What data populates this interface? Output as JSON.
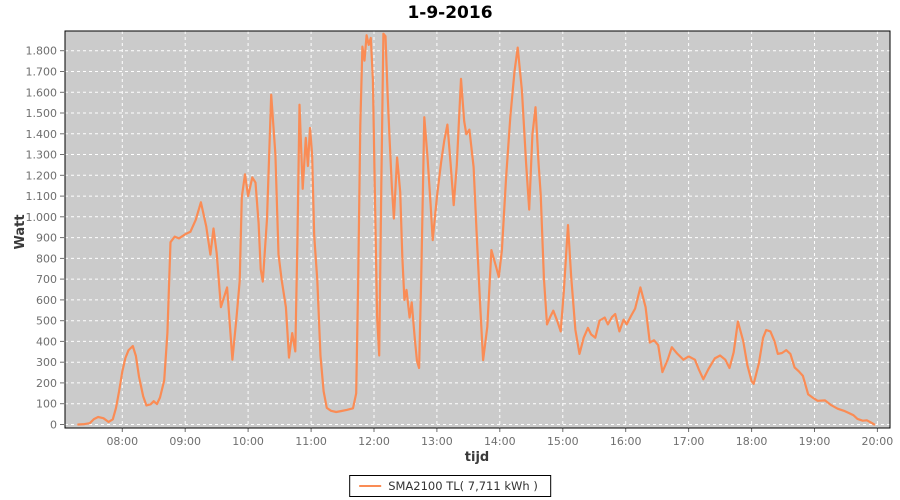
{
  "colors": {
    "series": "#fa8c55",
    "plot_bg": "#cbcbcb",
    "grid": "#ffffff",
    "tick_text": "#6f6f6f",
    "axis_text": "#3a3a3a",
    "border": "#000000",
    "page_bg": "#ffffff",
    "title_text": "#000000"
  },
  "chart_data": {
    "type": "line",
    "title": "1-9-2016",
    "xlabel": "tijd",
    "ylabel": "Watt",
    "legend_position": "bottom-center",
    "grid": "dashed-white-on-gray",
    "x_tick_labels": [
      "08:00",
      "09:00",
      "10:00",
      "11:00",
      "12:00",
      "13:00",
      "14:00",
      "15:00",
      "16:00",
      "17:00",
      "18:00",
      "19:00",
      "20:00"
    ],
    "y_tick_values": [
      0,
      100,
      200,
      300,
      400,
      500,
      600,
      700,
      800,
      900,
      1000,
      1100,
      1200,
      1300,
      1400,
      1500,
      1600,
      1700,
      1800
    ],
    "y_tick_labels": [
      "0",
      "100",
      "200",
      "300",
      "400",
      "500",
      "600",
      "700",
      "800",
      "900",
      "1.000",
      "1.100",
      "1.200",
      "1.300",
      "1.400",
      "1.500",
      "1.600",
      "1.700",
      "1.800"
    ],
    "xlim_hours": [
      7.09,
      20.2
    ],
    "ylim": [
      -17,
      1895
    ],
    "series": [
      {
        "name": "SMA2100 TL( 7,711 kWh )",
        "color": "#fa8c55",
        "points": [
          [
            "07:18",
            0
          ],
          [
            "07:24",
            2
          ],
          [
            "07:29",
            6
          ],
          [
            "07:33",
            26
          ],
          [
            "07:37",
            36
          ],
          [
            "07:42",
            30
          ],
          [
            "07:47",
            12
          ],
          [
            "07:51",
            25
          ],
          [
            "07:54",
            80
          ],
          [
            "07:57",
            160
          ],
          [
            "08:00",
            255
          ],
          [
            "08:03",
            320
          ],
          [
            "08:06",
            358
          ],
          [
            "08:10",
            378
          ],
          [
            "08:13",
            330
          ],
          [
            "08:16",
            230
          ],
          [
            "08:20",
            135
          ],
          [
            "08:23",
            92
          ],
          [
            "08:27",
            97
          ],
          [
            "08:30",
            112
          ],
          [
            "08:33",
            98
          ],
          [
            "08:36",
            130
          ],
          [
            "08:40",
            212
          ],
          [
            "08:43",
            440
          ],
          [
            "08:46",
            878
          ],
          [
            "08:50",
            905
          ],
          [
            "08:54",
            896
          ],
          [
            "09:00",
            916
          ],
          [
            "09:05",
            928
          ],
          [
            "09:10",
            985
          ],
          [
            "09:15",
            1070
          ],
          [
            "09:20",
            955
          ],
          [
            "09:24",
            818
          ],
          [
            "09:27",
            944
          ],
          [
            "09:30",
            825
          ],
          [
            "09:34",
            565
          ],
          [
            "09:40",
            660
          ],
          [
            "09:45",
            312
          ],
          [
            "09:49",
            520
          ],
          [
            "09:52",
            692
          ],
          [
            "09:54",
            1095
          ],
          [
            "09:57",
            1205
          ],
          [
            "10:00",
            1100
          ],
          [
            "10:04",
            1190
          ],
          [
            "10:07",
            1165
          ],
          [
            "10:10",
            970
          ],
          [
            "10:12",
            748
          ],
          [
            "10:14",
            688
          ],
          [
            "10:18",
            990
          ],
          [
            "10:22",
            1588
          ],
          [
            "10:26",
            1300
          ],
          [
            "10:29",
            820
          ],
          [
            "10:32",
            695
          ],
          [
            "10:36",
            565
          ],
          [
            "10:39",
            322
          ],
          [
            "10:42",
            440
          ],
          [
            "10:45",
            352
          ],
          [
            "10:47",
            880
          ],
          [
            "10:49",
            1540
          ],
          [
            "10:52",
            1135
          ],
          [
            "10:55",
            1380
          ],
          [
            "10:57",
            1245
          ],
          [
            "10:59",
            1428
          ],
          [
            "11:01",
            1302
          ],
          [
            "11:03",
            910
          ],
          [
            "11:06",
            695
          ],
          [
            "11:09",
            330
          ],
          [
            "11:12",
            160
          ],
          [
            "11:15",
            80
          ],
          [
            "11:19",
            66
          ],
          [
            "11:24",
            60
          ],
          [
            "11:29",
            65
          ],
          [
            "11:34",
            70
          ],
          [
            "11:40",
            78
          ],
          [
            "11:43",
            150
          ],
          [
            "11:45",
            700
          ],
          [
            "11:47",
            1440
          ],
          [
            "11:49",
            1820
          ],
          [
            "11:51",
            1752
          ],
          [
            "11:53",
            1875
          ],
          [
            "11:55",
            1828
          ],
          [
            "11:57",
            1862
          ],
          [
            "11:59",
            1660
          ],
          [
            "12:01",
            1080
          ],
          [
            "12:03",
            520
          ],
          [
            "12:05",
            332
          ],
          [
            "12:07",
            1150
          ],
          [
            "12:09",
            1882
          ],
          [
            "12:11",
            1870
          ],
          [
            "12:13",
            1590
          ],
          [
            "12:15",
            1362
          ],
          [
            "12:17",
            1150
          ],
          [
            "12:19",
            992
          ],
          [
            "12:22",
            1286
          ],
          [
            "12:25",
            1120
          ],
          [
            "12:27",
            810
          ],
          [
            "12:29",
            600
          ],
          [
            "12:31",
            648
          ],
          [
            "12:34",
            515
          ],
          [
            "12:36",
            588
          ],
          [
            "12:39",
            408
          ],
          [
            "12:41",
            305
          ],
          [
            "12:43",
            272
          ],
          [
            "12:45",
            700
          ],
          [
            "12:48",
            1480
          ],
          [
            "12:51",
            1288
          ],
          [
            "12:54",
            1060
          ],
          [
            "12:56",
            888
          ],
          [
            "13:00",
            1095
          ],
          [
            "13:04",
            1262
          ],
          [
            "13:07",
            1368
          ],
          [
            "13:10",
            1444
          ],
          [
            "13:13",
            1262
          ],
          [
            "13:16",
            1056
          ],
          [
            "13:19",
            1250
          ],
          [
            "13:23",
            1665
          ],
          [
            "13:26",
            1460
          ],
          [
            "13:28",
            1398
          ],
          [
            "13:31",
            1420
          ],
          [
            "13:35",
            1240
          ],
          [
            "13:38",
            905
          ],
          [
            "13:41",
            600
          ],
          [
            "13:44",
            310
          ],
          [
            "13:48",
            470
          ],
          [
            "13:52",
            840
          ],
          [
            "13:56",
            768
          ],
          [
            "13:59",
            710
          ],
          [
            "14:02",
            840
          ],
          [
            "14:06",
            1190
          ],
          [
            "14:10",
            1480
          ],
          [
            "14:14",
            1700
          ],
          [
            "14:17",
            1815
          ],
          [
            "14:21",
            1610
          ],
          [
            "14:25",
            1258
          ],
          [
            "14:28",
            1035
          ],
          [
            "14:31",
            1395
          ],
          [
            "14:34",
            1528
          ],
          [
            "14:37",
            1255
          ],
          [
            "14:39",
            1108
          ],
          [
            "14:42",
            705
          ],
          [
            "14:45",
            482
          ],
          [
            "14:48",
            518
          ],
          [
            "14:51",
            548
          ],
          [
            "14:55",
            495
          ],
          [
            "14:58",
            448
          ],
          [
            "15:01",
            640
          ],
          [
            "15:05",
            960
          ],
          [
            "15:08",
            710
          ],
          [
            "15:12",
            455
          ],
          [
            "15:16",
            340
          ],
          [
            "15:20",
            418
          ],
          [
            "15:24",
            465
          ],
          [
            "15:27",
            434
          ],
          [
            "15:31",
            418
          ],
          [
            "15:35",
            500
          ],
          [
            "15:40",
            515
          ],
          [
            "15:43",
            482
          ],
          [
            "15:47",
            518
          ],
          [
            "15:50",
            532
          ],
          [
            "15:54",
            448
          ],
          [
            "15:58",
            505
          ],
          [
            "16:01",
            482
          ],
          [
            "16:05",
            522
          ],
          [
            "16:09",
            558
          ],
          [
            "16:14",
            660
          ],
          [
            "16:19",
            565
          ],
          [
            "16:23",
            395
          ],
          [
            "16:27",
            406
          ],
          [
            "16:31",
            382
          ],
          [
            "16:35",
            252
          ],
          [
            "16:40",
            312
          ],
          [
            "16:44",
            372
          ],
          [
            "16:49",
            342
          ],
          [
            "16:55",
            312
          ],
          [
            "17:00",
            328
          ],
          [
            "17:06",
            312
          ],
          [
            "17:10",
            262
          ],
          [
            "17:14",
            218
          ],
          [
            "17:19",
            268
          ],
          [
            "17:25",
            318
          ],
          [
            "17:30",
            332
          ],
          [
            "17:35",
            312
          ],
          [
            "17:39",
            272
          ],
          [
            "17:43",
            348
          ],
          [
            "17:47",
            496
          ],
          [
            "17:52",
            402
          ],
          [
            "17:56",
            285
          ],
          [
            "18:00",
            208
          ],
          [
            "18:02",
            196
          ],
          [
            "18:07",
            295
          ],
          [
            "18:11",
            418
          ],
          [
            "18:14",
            455
          ],
          [
            "18:18",
            448
          ],
          [
            "18:22",
            400
          ],
          [
            "18:25",
            340
          ],
          [
            "18:29",
            344
          ],
          [
            "18:33",
            358
          ],
          [
            "18:37",
            340
          ],
          [
            "18:41",
            275
          ],
          [
            "18:45",
            256
          ],
          [
            "18:49",
            234
          ],
          [
            "18:54",
            145
          ],
          [
            "18:59",
            127
          ],
          [
            "19:03",
            114
          ],
          [
            "19:10",
            116
          ],
          [
            "19:16",
            93
          ],
          [
            "19:22",
            76
          ],
          [
            "19:28",
            66
          ],
          [
            "19:32",
            57
          ],
          [
            "19:37",
            45
          ],
          [
            "19:41",
            27
          ],
          [
            "19:46",
            18
          ],
          [
            "19:50",
            20
          ],
          [
            "19:54",
            9
          ],
          [
            "19:57",
            0
          ]
        ]
      }
    ]
  }
}
